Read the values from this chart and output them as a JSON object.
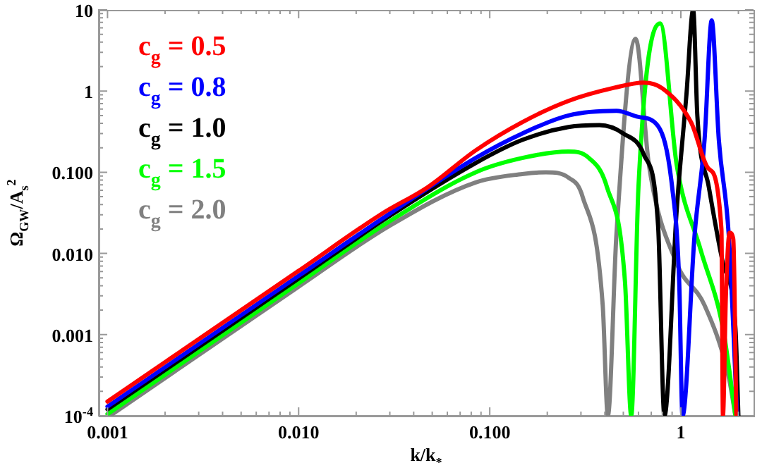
{
  "chart_data": {
    "type": "line",
    "xlabel": "k/k$_{*}$",
    "ylabel": "Ω$_{GW}$/A$_{s}$$^{2}$",
    "log": "xy",
    "grid": false,
    "legend": "top left",
    "marker": "none",
    "line_style": "solid",
    "xlim": [
      0.0009,
      2.4
    ],
    "ylim": [
      0.0001,
      10
    ],
    "xticks": [
      0.001,
      {
        "value": 0.002,
        "label": null
      },
      {
        "value": 0.003,
        "label": null
      },
      {
        "value": 0.004,
        "label": null
      },
      {
        "value": 0.005,
        "label": null
      },
      {
        "value": 0.006,
        "label": null
      },
      {
        "value": 0.007,
        "label": null
      },
      {
        "value": 0.008,
        "label": null
      },
      {
        "value": 0.009,
        "label": null
      },
      {
        "value": 0.01,
        "label": "0.010"
      },
      {
        "value": 0.02,
        "label": null
      },
      {
        "value": 0.03,
        "label": null
      },
      {
        "value": 0.04,
        "label": null
      },
      {
        "value": 0.05,
        "label": null
      },
      {
        "value": 0.06,
        "label": null
      },
      {
        "value": 0.07,
        "label": null
      },
      {
        "value": 0.08,
        "label": null
      },
      {
        "value": 0.09,
        "label": null
      },
      {
        "value": 0.1,
        "label": "0.100"
      },
      {
        "value": 0.2,
        "label": null
      },
      {
        "value": 0.3,
        "label": null
      },
      {
        "value": 0.4,
        "label": null
      },
      {
        "value": 0.5,
        "label": null
      },
      {
        "value": 0.6,
        "label": null
      },
      {
        "value": 0.7,
        "label": null
      },
      {
        "value": 0.8,
        "label": null
      },
      {
        "value": 0.9,
        "label": null
      },
      1,
      {
        "value": 2,
        "label": null
      }
    ],
    "yticks": [
      {
        "value": 0.0001,
        "label": "10$^{-4}$"
      },
      {
        "value": 0.0002,
        "label": null
      },
      {
        "value": 0.0003,
        "label": null
      },
      {
        "value": 0.0004,
        "label": null
      },
      {
        "value": 0.0005,
        "label": null
      },
      {
        "value": 0.0006,
        "label": null
      },
      {
        "value": 0.0007,
        "label": null
      },
      {
        "value": 0.0008,
        "label": null
      },
      {
        "value": 0.0009,
        "label": null
      },
      0.001,
      {
        "value": 0.002,
        "label": null
      },
      {
        "value": 0.003,
        "label": null
      },
      {
        "value": 0.004,
        "label": null
      },
      {
        "value": 0.005,
        "label": null
      },
      {
        "value": 0.006,
        "label": null
      },
      {
        "value": 0.007,
        "label": null
      },
      {
        "value": 0.008,
        "label": null
      },
      {
        "value": 0.009,
        "label": null
      },
      {
        "value": 0.01,
        "label": "0.010"
      },
      {
        "value": 0.02,
        "label": null
      },
      {
        "value": 0.03,
        "label": null
      },
      {
        "value": 0.04,
        "label": null
      },
      {
        "value": 0.05,
        "label": null
      },
      {
        "value": 0.06,
        "label": null
      },
      {
        "value": 0.07,
        "label": null
      },
      {
        "value": 0.08,
        "label": null
      },
      {
        "value": 0.09,
        "label": null
      },
      {
        "value": 0.1,
        "label": "0.100"
      },
      {
        "value": 0.2,
        "label": null
      },
      {
        "value": 0.3,
        "label": null
      },
      {
        "value": 0.4,
        "label": null
      },
      {
        "value": 0.5,
        "label": null
      },
      {
        "value": 0.6,
        "label": null
      },
      {
        "value": 0.7,
        "label": null
      },
      {
        "value": 0.8,
        "label": null
      },
      {
        "value": 0.9,
        "label": null
      },
      1,
      {
        "value": 2,
        "label": null
      },
      {
        "value": 3,
        "label": null
      },
      {
        "value": 4,
        "label": null
      },
      {
        "value": 5,
        "label": null
      },
      {
        "value": 6,
        "label": null
      },
      {
        "value": 7,
        "label": null
      },
      {
        "value": 8,
        "label": null
      },
      {
        "value": 9,
        "label": null
      },
      10
    ],
    "series": [
      {
        "name": "c$_{g}$ = 0.5",
        "color": "#ff0000",
        "x": [
          0.001,
          0.01,
          0.0272,
          0.0475,
          0.0844,
          0.148,
          0.258,
          0.45,
          0.64,
          0.8,
          1.13,
          1.4,
          1.63,
          1.66,
          1.72,
          1.8,
          1.88,
          1.95
        ],
        "values": [
          0.00015,
          0.0061,
          0.0307,
          0.0657,
          0.186,
          0.414,
          0.756,
          1.1,
          1.27,
          1.08,
          0.414,
          0.11,
          0.02,
          0.0001,
          0.003,
          0.018,
          0.015,
          0.0001
        ]
      },
      {
        "name": "c$_{g}$ = 0.8",
        "color": "#0000ff",
        "x": [
          0.001,
          0.01,
          0.03,
          0.0844,
          0.148,
          0.258,
          0.46,
          0.6,
          0.76,
          0.9,
          0.98,
          1.02,
          1.18,
          1.33,
          1.45,
          1.58,
          1.78,
          1.97
        ],
        "values": [
          0.00013,
          0.0053,
          0.031,
          0.15,
          0.3,
          0.5,
          0.57,
          0.48,
          0.37,
          0.066,
          0.0045,
          0.0001,
          0.017,
          0.25,
          7.4,
          0.25,
          0.017,
          0.0001
        ]
      },
      {
        "name": "c$_{g}$ = 1.0",
        "color": "#000000",
        "x": [
          0.001,
          0.01,
          0.03,
          0.0844,
          0.148,
          0.258,
          0.375,
          0.5,
          0.64,
          0.76,
          0.82,
          0.95,
          1.07,
          1.16,
          1.22,
          1.4,
          1.66,
          1.93,
          2.0
        ],
        "values": [
          0.00012,
          0.0049,
          0.029,
          0.13,
          0.25,
          0.36,
          0.38,
          0.3,
          0.165,
          0.022,
          0.0001,
          0.033,
          0.92,
          10,
          0.49,
          0.066,
          0.0076,
          0.0012,
          0.0001
        ]
      },
      {
        "name": "c$_{g}$ = 1.5",
        "color": "#00ff00",
        "x": [
          0.001,
          0.01,
          0.03,
          0.0844,
          0.148,
          0.258,
          0.33,
          0.41,
          0.51,
          0.55,
          0.6,
          0.78,
          0.95,
          1.27,
          1.66,
          1.93
        ],
        "values": [
          0.000105,
          0.0043,
          0.025,
          0.1,
          0.15,
          0.18,
          0.15,
          0.066,
          0.0045,
          0.0001,
          0.066,
          6.8,
          0.125,
          0.011,
          0.0012,
          0.0001
        ]
      },
      {
        "name": "c$_{g}$ = 2.0",
        "color": "#808080",
        "x": [
          0.00103,
          0.01,
          0.03,
          0.0844,
          0.148,
          0.197,
          0.26,
          0.306,
          0.39,
          0.415,
          0.46,
          0.58,
          0.68,
          0.95,
          1.33,
          1.78,
          1.93
        ],
        "values": [
          0.0001,
          0.0039,
          0.022,
          0.075,
          0.095,
          0.1,
          0.085,
          0.05,
          0.0023,
          0.0001,
          0.017,
          4.4,
          0.125,
          0.0076,
          0.0023,
          0.0003,
          0.0001
        ]
      }
    ]
  }
}
